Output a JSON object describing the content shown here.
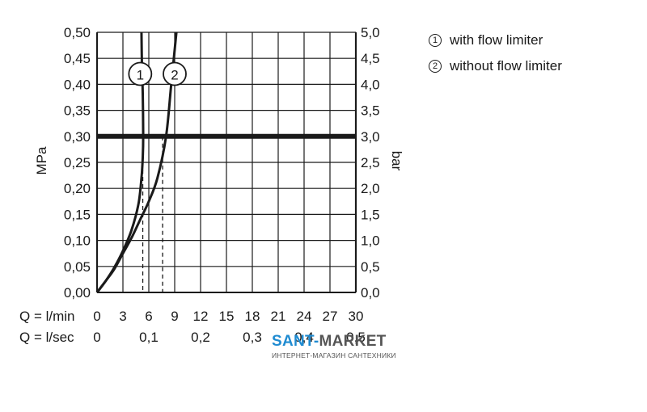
{
  "chart_data": {
    "type": "line",
    "ylabel_left": "MPa",
    "ylabel_right": "bar",
    "ylim": [
      0,
      0.5
    ],
    "xlim": [
      0,
      30
    ],
    "left_ticks": [
      "0,00",
      "0,05",
      "0,10",
      "0,15",
      "0,20",
      "0,25",
      "0,30",
      "0,35",
      "0,40",
      "0,45",
      "0,50"
    ],
    "right_ticks": [
      "0,0",
      "0,5",
      "1,0",
      "1,5",
      "2,0",
      "2,5",
      "3,0",
      "3,5",
      "4,0",
      "4,5",
      "5,0"
    ],
    "x_lmin_label": "Q = l/min",
    "x_lmin_ticks": [
      "0",
      "3",
      "6",
      "9",
      "12",
      "15",
      "18",
      "21",
      "24",
      "27",
      "30"
    ],
    "x_lsec_label": "Q = l/sec",
    "x_lsec_ticks": [
      "0",
      "0,1",
      "0,2",
      "0,3",
      "0,4",
      "0,5"
    ],
    "grid": true,
    "reference_pressure_mpa": 0.3,
    "series": [
      {
        "marker": "1",
        "name": "with flow limiter",
        "x": [
          0,
          1,
          2,
          3,
          4,
          4.8,
          5.15,
          5.3,
          5.35,
          5.3,
          5.2,
          5.15
        ],
        "y": [
          0,
          0.022,
          0.048,
          0.08,
          0.12,
          0.17,
          0.22,
          0.26,
          0.3,
          0.38,
          0.44,
          0.5
        ]
      },
      {
        "marker": "2",
        "name": "without flow limiter",
        "x": [
          0,
          1,
          2,
          3,
          4,
          5,
          6,
          7,
          8,
          8.6,
          9.2
        ],
        "y": [
          0,
          0.022,
          0.045,
          0.075,
          0.105,
          0.14,
          0.175,
          0.22,
          0.3,
          0.4,
          0.5
        ]
      }
    ],
    "dropdowns": [
      {
        "x": 5.3,
        "y": 0.25
      },
      {
        "x": 7.6,
        "y": 0.3
      }
    ],
    "legend": {
      "position": "top-right",
      "items": [
        {
          "marker": "1",
          "label": "with flow limiter"
        },
        {
          "marker": "2",
          "label": "without flow limiter"
        }
      ]
    }
  },
  "watermark": {
    "brand_a": "SANT-",
    "brand_b": "MARKET",
    "subtitle": "ИНТЕРНЕТ-МАГАЗИН САНТЕХНИКИ"
  }
}
